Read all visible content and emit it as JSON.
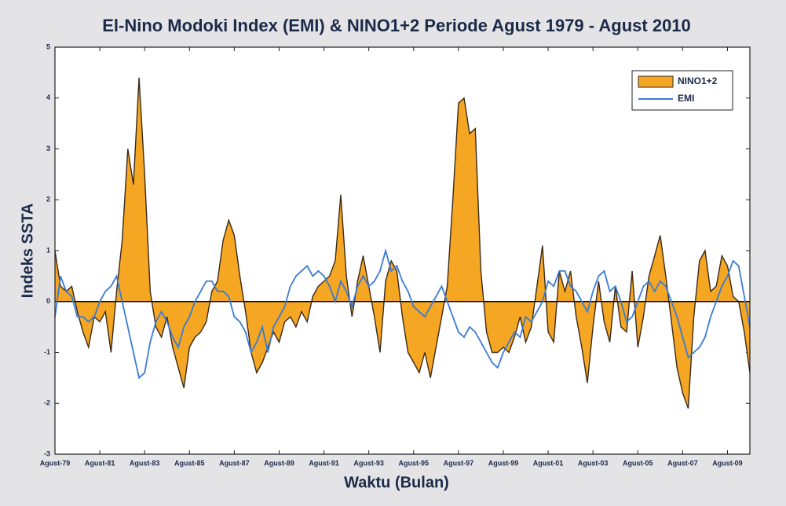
{
  "chart_data": {
    "type": "area_line",
    "title": "El-Nino Modoki Index (EMI) & NINO1+2 Periode Agust 1979 - Agust 2010",
    "x_label": "Waktu (Bulan)",
    "y_label": "Indeks SSTA",
    "x": [
      1979.6,
      1979.85,
      1980.1,
      1980.35,
      1980.6,
      1980.85,
      1981.1,
      1981.35,
      1981.6,
      1981.85,
      1982.1,
      1982.35,
      1982.6,
      1982.85,
      1983.1,
      1983.35,
      1983.6,
      1983.85,
      1984.1,
      1984.35,
      1984.6,
      1984.85,
      1985.1,
      1985.35,
      1985.6,
      1985.85,
      1986.1,
      1986.35,
      1986.6,
      1986.85,
      1987.1,
      1987.35,
      1987.6,
      1987.85,
      1988.1,
      1988.35,
      1988.6,
      1988.85,
      1989.1,
      1989.35,
      1989.6,
      1989.85,
      1990.1,
      1990.35,
      1990.6,
      1990.85,
      1991.1,
      1991.35,
      1991.6,
      1991.85,
      1992.1,
      1992.35,
      1992.6,
      1992.85,
      1993.1,
      1993.35,
      1993.6,
      1993.85,
      1994.1,
      1994.35,
      1994.6,
      1994.85,
      1995.1,
      1995.35,
      1995.6,
      1995.85,
      1996.1,
      1996.35,
      1996.6,
      1996.85,
      1997.1,
      1997.35,
      1997.6,
      1997.85,
      1998.1,
      1998.35,
      1998.6,
      1998.85,
      1999.1,
      1999.35,
      1999.6,
      1999.85,
      2000.1,
      2000.35,
      2000.6,
      2000.85,
      2001.1,
      2001.35,
      2001.6,
      2001.85,
      2002.1,
      2002.35,
      2002.6,
      2002.85,
      2003.1,
      2003.35,
      2003.6,
      2003.85,
      2004.1,
      2004.35,
      2004.6,
      2004.85,
      2005.1,
      2005.35,
      2005.6,
      2005.85,
      2006.1,
      2006.35,
      2006.6,
      2006.85,
      2007.1,
      2007.35,
      2007.6,
      2007.85,
      2008.1,
      2008.35,
      2008.6,
      2008.85,
      2009.1,
      2009.35,
      2009.6,
      2009.85,
      2010.1,
      2010.35,
      2010.6
    ],
    "series": [
      {
        "name": "NINO1+2",
        "color": "#f5a623",
        "line_color": "#3a2a1a",
        "style": "area",
        "values": [
          1.0,
          0.3,
          0.2,
          0.3,
          -0.2,
          -0.6,
          -0.9,
          -0.3,
          -0.4,
          -0.2,
          -1.0,
          0.2,
          1.2,
          3.0,
          2.3,
          4.4,
          2.5,
          0.2,
          -0.5,
          -0.7,
          -0.3,
          -0.9,
          -1.3,
          -1.7,
          -0.9,
          -0.7,
          -0.6,
          -0.4,
          0.2,
          0.4,
          1.2,
          1.6,
          1.3,
          0.5,
          -0.2,
          -1.0,
          -1.4,
          -1.2,
          -0.9,
          -0.6,
          -0.8,
          -0.4,
          -0.3,
          -0.5,
          -0.2,
          -0.4,
          0.1,
          0.3,
          0.4,
          0.5,
          0.8,
          2.1,
          0.5,
          -0.3,
          0.4,
          0.9,
          0.3,
          -0.3,
          -1.0,
          0.4,
          0.8,
          0.6,
          -0.3,
          -1.0,
          -1.2,
          -1.4,
          -1.0,
          -1.5,
          -0.9,
          -0.3,
          0.3,
          2.0,
          3.9,
          4.0,
          3.3,
          3.4,
          0.6,
          -0.6,
          -1.0,
          -1.0,
          -0.9,
          -1.0,
          -0.7,
          -0.3,
          -0.8,
          -0.5,
          0.3,
          1.1,
          -0.6,
          -0.8,
          0.6,
          0.2,
          0.6,
          -0.3,
          -0.9,
          -1.6,
          -0.5,
          0.4,
          -0.4,
          -0.8,
          0.3,
          -0.5,
          -0.6,
          0.6,
          -0.9,
          -0.3,
          0.5,
          0.9,
          1.3,
          0.5,
          -0.4,
          -1.3,
          -1.8,
          -2.1,
          -0.3,
          0.8,
          1.0,
          0.2,
          0.3,
          0.9,
          0.7,
          0.1,
          0.0,
          -0.6,
          -1.4
        ]
      },
      {
        "name": "EMI",
        "color": "#3a7bd5",
        "style": "line",
        "values": [
          -0.3,
          0.5,
          0.2,
          0.1,
          -0.3,
          -0.3,
          -0.4,
          -0.3,
          0.0,
          0.2,
          0.3,
          0.5,
          0.0,
          -0.5,
          -1.0,
          -1.5,
          -1.4,
          -0.8,
          -0.4,
          -0.2,
          -0.4,
          -0.7,
          -0.9,
          -0.5,
          -0.3,
          0.0,
          0.2,
          0.4,
          0.4,
          0.2,
          0.2,
          0.1,
          -0.3,
          -0.4,
          -0.6,
          -1.0,
          -0.8,
          -0.5,
          -1.0,
          -0.5,
          -0.3,
          -0.1,
          0.3,
          0.5,
          0.6,
          0.7,
          0.5,
          0.6,
          0.5,
          0.3,
          0.0,
          0.4,
          0.2,
          -0.1,
          0.3,
          0.5,
          0.3,
          0.4,
          0.6,
          1.0,
          0.6,
          0.7,
          0.4,
          0.2,
          -0.1,
          -0.2,
          -0.3,
          -0.1,
          0.1,
          0.3,
          0.0,
          -0.3,
          -0.6,
          -0.7,
          -0.5,
          -0.6,
          -0.8,
          -1.0,
          -1.2,
          -1.3,
          -1.0,
          -0.8,
          -0.6,
          -0.7,
          -0.3,
          -0.4,
          -0.2,
          0.0,
          0.4,
          0.3,
          0.6,
          0.6,
          0.3,
          0.2,
          0.0,
          -0.2,
          0.2,
          0.5,
          0.6,
          0.2,
          0.3,
          0.0,
          -0.4,
          -0.3,
          0.0,
          0.3,
          0.4,
          0.2,
          0.4,
          0.3,
          0.0,
          -0.3,
          -0.7,
          -1.1,
          -1.0,
          -0.9,
          -0.7,
          -0.3,
          0.0,
          0.3,
          0.5,
          0.8,
          0.7,
          0.1,
          -0.5
        ]
      }
    ],
    "xlim": [
      1979.6,
      2010.6
    ],
    "xticks": [
      {
        "value": 1979.6,
        "label": "Agust-79"
      },
      {
        "value": 1981.6,
        "label": "Agust-81"
      },
      {
        "value": 1983.6,
        "label": "Agust-83"
      },
      {
        "value": 1985.6,
        "label": "Agust-85"
      },
      {
        "value": 1987.6,
        "label": "Agust-87"
      },
      {
        "value": 1989.6,
        "label": "Agust-89"
      },
      {
        "value": 1991.6,
        "label": "Agust-91"
      },
      {
        "value": 1993.6,
        "label": "Agust-93"
      },
      {
        "value": 1995.6,
        "label": "Agust-95"
      },
      {
        "value": 1997.6,
        "label": "Agust-97"
      },
      {
        "value": 1999.6,
        "label": "Agust-99"
      },
      {
        "value": 2001.6,
        "label": "Agust-01"
      },
      {
        "value": 2003.6,
        "label": "Agust-03"
      },
      {
        "value": 2005.6,
        "label": "Agust-05"
      },
      {
        "value": 2007.6,
        "label": "Agust-07"
      },
      {
        "value": 2009.6,
        "label": "Agust-09"
      }
    ],
    "ylim": [
      -3,
      5
    ],
    "yticks": [
      -3,
      -2,
      -1,
      0,
      1,
      2,
      3,
      4,
      5
    ],
    "grid": false,
    "legend": "upper right"
  }
}
